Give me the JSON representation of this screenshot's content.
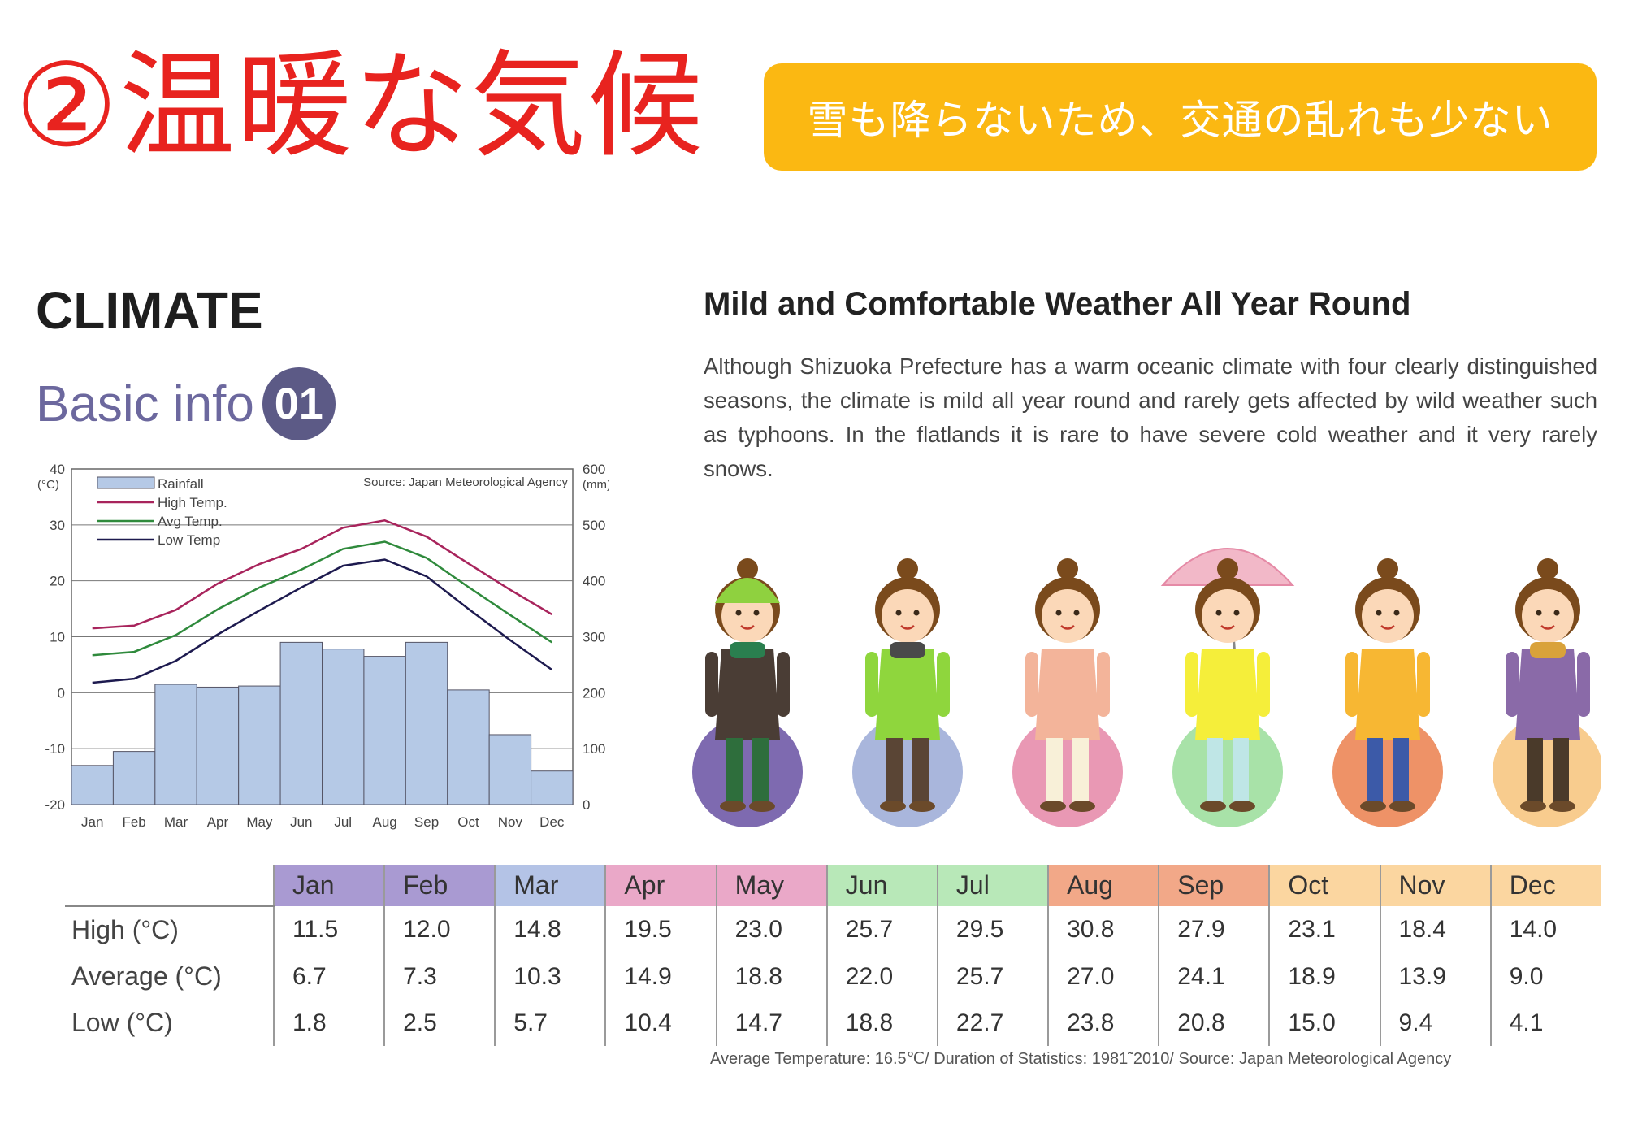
{
  "header": {
    "title": "②温暖な気候",
    "banner_text": "雪も降らないため、交通の乱れも少ない"
  },
  "section": {
    "climate_label": "CLIMATE",
    "basic_info_label": "Basic info",
    "basic_info_number": "01",
    "headline": "Mild and Comfortable Weather All Year Round",
    "intro": "Although Shizuoka Prefecture has a warm oceanic climate with four clearly distinguished seasons, the climate is mild all year round and rarely gets affected by wild weather such as typhoons. In the flatlands it is rare to have severe cold weather and it very rarely snows."
  },
  "chart_data": {
    "type": "bar",
    "source_note": "Source: Japan Meteorological Agency",
    "categories": [
      "Jan",
      "Feb",
      "Mar",
      "Apr",
      "May",
      "Jun",
      "Jul",
      "Aug",
      "Sep",
      "Oct",
      "Nov",
      "Dec"
    ],
    "left_axis": {
      "unit": "(°C)",
      "ylim": [
        -20,
        40
      ],
      "ticks": [
        "40",
        "30",
        "20",
        "10",
        "0",
        "-10",
        "-20"
      ]
    },
    "right_axis": {
      "unit": "(mm)",
      "ylim": [
        0,
        600
      ],
      "ticks": [
        "600",
        "500",
        "400",
        "300",
        "200",
        "100",
        "0"
      ]
    },
    "legend": [
      "Rainfall",
      "High Temp.",
      "Avg Temp.",
      "Low Temp"
    ],
    "legend_position": "top-left",
    "series": [
      {
        "name": "Rainfall",
        "kind": "bar",
        "axis": "right",
        "color": "#b5c9e6",
        "values": [
          70,
          95,
          215,
          210,
          212,
          290,
          278,
          265,
          290,
          205,
          125,
          60
        ]
      },
      {
        "name": "High Temp.",
        "kind": "line",
        "axis": "left",
        "color": "#a8245c",
        "values": [
          11.5,
          12.0,
          14.8,
          19.5,
          23.0,
          25.7,
          29.5,
          30.8,
          27.9,
          23.1,
          18.4,
          14.0
        ]
      },
      {
        "name": "Avg Temp.",
        "kind": "line",
        "axis": "left",
        "color": "#2f8a3c",
        "values": [
          6.7,
          7.3,
          10.3,
          14.9,
          18.8,
          22.0,
          25.7,
          27.0,
          24.1,
          18.9,
          13.9,
          9.0
        ]
      },
      {
        "name": "Low Temp",
        "kind": "line",
        "axis": "left",
        "color": "#1d1a4f",
        "values": [
          1.8,
          2.5,
          5.7,
          10.4,
          14.7,
          18.8,
          22.7,
          23.8,
          20.8,
          15.0,
          9.4,
          4.1
        ]
      }
    ],
    "grid": true
  },
  "people": [
    {
      "month": "Jan",
      "circle": "#7e6ab0"
    },
    {
      "month": "Mar",
      "circle": "#a9b6dc"
    },
    {
      "month": "May",
      "circle": "#e998b4"
    },
    {
      "month": "Jun",
      "circle": "#a8e2a8"
    },
    {
      "month": "Aug",
      "circle": "#ee9267"
    },
    {
      "month": "Oct",
      "circle": "#f8cc8e"
    }
  ],
  "table": {
    "months": [
      "Jan",
      "Feb",
      "Mar",
      "Apr",
      "May",
      "Jun",
      "Jul",
      "Aug",
      "Sep",
      "Oct",
      "Nov",
      "Dec"
    ],
    "month_colors": [
      "#a99ad2",
      "#a99ad2",
      "#b4c3e6",
      "#eaa8c8",
      "#eaa8c8",
      "#b8e8b8",
      "#b8e8b8",
      "#f2a888",
      "#f2a888",
      "#fbd6a0",
      "#fbd6a0",
      "#fbd6a0"
    ],
    "rows": [
      {
        "label": "High (°C)",
        "values": [
          "11.5",
          "12.0",
          "14.8",
          "19.5",
          "23.0",
          "25.7",
          "29.5",
          "30.8",
          "27.9",
          "23.1",
          "18.4",
          "14.0"
        ]
      },
      {
        "label": "Average (°C)",
        "values": [
          "6.7",
          "7.3",
          "10.3",
          "14.9",
          "18.8",
          "22.0",
          "25.7",
          "27.0",
          "24.1",
          "18.9",
          "13.9",
          "9.0"
        ]
      },
      {
        "label": "Low (°C)",
        "values": [
          "1.8",
          "2.5",
          "5.7",
          "10.4",
          "14.7",
          "18.8",
          "22.7",
          "23.8",
          "20.8",
          "15.0",
          "9.4",
          "4.1"
        ]
      }
    ],
    "footnote": "Average Temperature: 16.5℃/ Duration of Statistics: 1981˜2010/ Source: Japan Meteorological Agency"
  }
}
